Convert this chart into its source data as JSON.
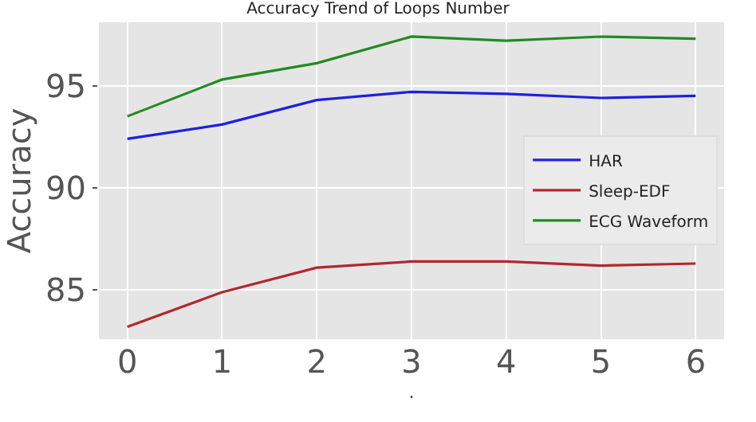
{
  "chart_data": {
    "type": "line",
    "title": "Accuracy Trend of Loops Number",
    "xlabel": ".",
    "ylabel": "Accuracy",
    "x": [
      0,
      1,
      2,
      3,
      4,
      5,
      6
    ],
    "series": [
      {
        "name": "HAR",
        "color": "#1f1fe0",
        "values": [
          92.4,
          93.1,
          94.3,
          94.7,
          94.6,
          94.4,
          94.5
        ]
      },
      {
        "name": "Sleep-EDF",
        "color": "#b22830",
        "values": [
          83.2,
          84.9,
          86.1,
          86.4,
          86.4,
          86.2,
          86.3
        ]
      },
      {
        "name": "ECG Waveform",
        "color": "#228b22",
        "values": [
          93.5,
          95.3,
          96.1,
          97.4,
          97.2,
          97.4,
          97.3
        ]
      }
    ],
    "xlim": [
      -0.3,
      6.3
    ],
    "ylim": [
      82.6,
      98.1
    ],
    "xticks": [
      0,
      1,
      2,
      3,
      4,
      5,
      6
    ],
    "yticks": [
      85,
      90,
      95
    ],
    "grid": true,
    "legend": "right"
  }
}
